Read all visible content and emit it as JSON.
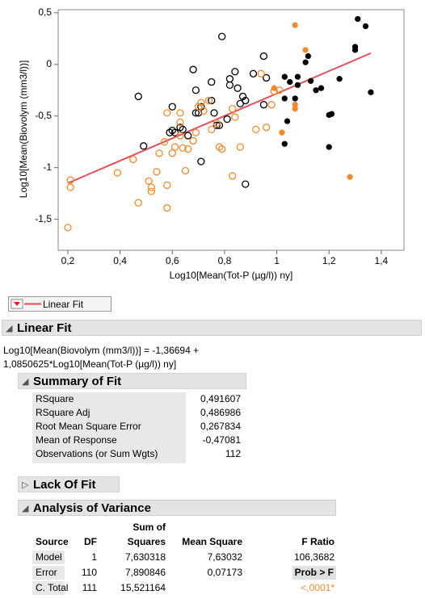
{
  "chart_data": {
    "type": "scatter",
    "x_label": "Log10[Mean(Tot-P (µg/l)) ny]",
    "y_label": "Log10[Mean(Biovolym (mm3/l))]",
    "xlim": [
      0.163,
      1.487
    ],
    "ylim": [
      -1.8,
      0.53
    ],
    "xticks": [
      {
        "value": 0.2,
        "label": "0,2"
      },
      {
        "value": 0.4,
        "label": "0,4"
      },
      {
        "value": 0.6,
        "label": "0,6"
      },
      {
        "value": 0.8,
        "label": "0,8"
      },
      1,
      {
        "value": 1.2,
        "label": "1,2"
      },
      {
        "value": 1.4,
        "label": "1,4"
      }
    ],
    "yticks": [
      {
        "value": -1.5,
        "label": "-1,5"
      },
      -1,
      {
        "value": -0.5,
        "label": "-0,5"
      },
      0,
      {
        "value": 0.5,
        "label": "0,5"
      }
    ],
    "grid": false,
    "fit_color": "#e0505c",
    "series": [
      {
        "color": "#000000",
        "filled": false,
        "x": [
          0.47,
          0.49,
          0.6,
          0.6,
          0.61,
          0.68,
          0.69,
          0.7,
          0.71,
          0.69,
          0.75,
          0.75,
          0.76,
          0.77,
          0.78,
          0.81,
          0.84,
          0.82,
          0.82,
          0.85,
          0.86,
          0.87,
          0.88,
          0.91,
          0.95,
          0.96,
          0.95,
          0.88,
          0.79,
          0.71,
          0.66,
          0.64,
          0.63,
          0.59
        ],
        "values": [
          -0.31,
          -0.79,
          -0.41,
          -0.64,
          -0.66,
          -0.05,
          -0.25,
          -0.47,
          -0.41,
          -0.47,
          -0.17,
          -0.35,
          -0.47,
          -0.59,
          -0.59,
          -0.53,
          -0.07,
          -0.14,
          -0.2,
          -0.23,
          -0.38,
          -0.31,
          -0.35,
          -0.09,
          0.08,
          -0.13,
          -0.39,
          -1.16,
          0.27,
          -0.94,
          -0.69,
          -0.63,
          -0.61,
          -0.66
        ]
      },
      {
        "color": "#f08a2c",
        "filled": false,
        "x": [
          0.21,
          0.21,
          0.2,
          0.39,
          0.45,
          0.47,
          0.51,
          0.52,
          0.52,
          0.54,
          0.55,
          0.57,
          0.58,
          0.58,
          0.6,
          0.61,
          0.63,
          0.63,
          0.63,
          0.64,
          0.65,
          0.66,
          0.68,
          0.69,
          0.7,
          0.71,
          0.72,
          0.74,
          0.75,
          0.77,
          0.78,
          0.79,
          0.83,
          0.84,
          0.86,
          0.83,
          0.92,
          0.94,
          0.96,
          0.98,
          0.99,
          1.01,
          0.58
        ],
        "values": [
          -1.12,
          -1.19,
          -1.58,
          -1.05,
          -0.92,
          -1.34,
          -1.13,
          -1.19,
          -1.23,
          -1.04,
          -0.86,
          -0.75,
          -1.17,
          -1.39,
          -0.86,
          -0.8,
          -0.56,
          -0.69,
          -0.47,
          -0.81,
          -1.03,
          -0.82,
          -0.74,
          -0.66,
          -0.41,
          -0.37,
          -0.45,
          -0.35,
          -0.63,
          -0.57,
          -0.8,
          -0.82,
          -0.43,
          -0.51,
          -0.8,
          -1.08,
          -0.63,
          -0.09,
          -0.61,
          -0.39,
          -0.26,
          -0.25,
          -0.47
        ]
      },
      {
        "color": "#f08a2c",
        "filled": true,
        "x": [
          1.07,
          1.02,
          1.07,
          1.11,
          1.13,
          1.07,
          1.28,
          0.99
        ],
        "values": [
          0.38,
          -0.66,
          -0.39,
          0.14,
          -0.16,
          -0.43,
          -1.09,
          -0.23
        ]
      },
      {
        "color": "#000000",
        "filled": true,
        "x": [
          1.31,
          1.34,
          1.36,
          1.3,
          1.3,
          1.17,
          1.15,
          1.13,
          1.12,
          1.08,
          1.08,
          1.05,
          1.07,
          1.03,
          1.04,
          1.03,
          1.2,
          1.21,
          1.24,
          1.03,
          1.11,
          1.2
        ],
        "values": [
          0.44,
          0.37,
          -0.27,
          0.17,
          0.14,
          -0.23,
          -0.25,
          -0.16,
          0.08,
          -0.12,
          -0.2,
          -0.17,
          -0.33,
          -0.33,
          -0.55,
          -0.77,
          -0.49,
          -0.48,
          -0.14,
          -0.12,
          0.02,
          -0.8
        ]
      }
    ]
  },
  "legend_button": "Linear Fit",
  "linear_fit": {
    "title": "Linear Fit",
    "equation": {
      "lhs": "Log10[Mean(Biovolym (mm3/l))] =",
      "intercept": {
        "value": -1.36694,
        "label": "-1,36694"
      },
      "plus": "+",
      "slope": {
        "value": 1.0850625,
        "label": "1,0850625"
      },
      "rhs": "*Log10[Mean(Tot-P (µg/l)) ny]"
    }
  },
  "summary_of_fit": {
    "title": "Summary of Fit",
    "rows": [
      [
        "RSquare",
        "0,491607"
      ],
      [
        "RSquare Adj",
        "0,486986"
      ],
      [
        "Root Mean Square Error",
        "0,267834"
      ],
      [
        "Mean of Response",
        "-0,47081"
      ],
      [
        "Observations (or Sum Wgts)",
        "112"
      ]
    ]
  },
  "lack_of_fit": {
    "title": "Lack Of Fit"
  },
  "anova": {
    "title": "Analysis of Variance",
    "header_top": "Sum of",
    "columns": [
      "Source",
      "DF",
      "Squares",
      "Mean Square",
      "F Ratio"
    ],
    "rows": [
      [
        "Model",
        "1",
        "7,630318",
        "7,63032",
        "106,3682"
      ],
      [
        "Error",
        "110",
        "7,890846",
        "0,07173",
        "Prob > F"
      ],
      [
        "C. Total",
        "111",
        "15,521164",
        null,
        "<,0001*"
      ]
    ]
  }
}
